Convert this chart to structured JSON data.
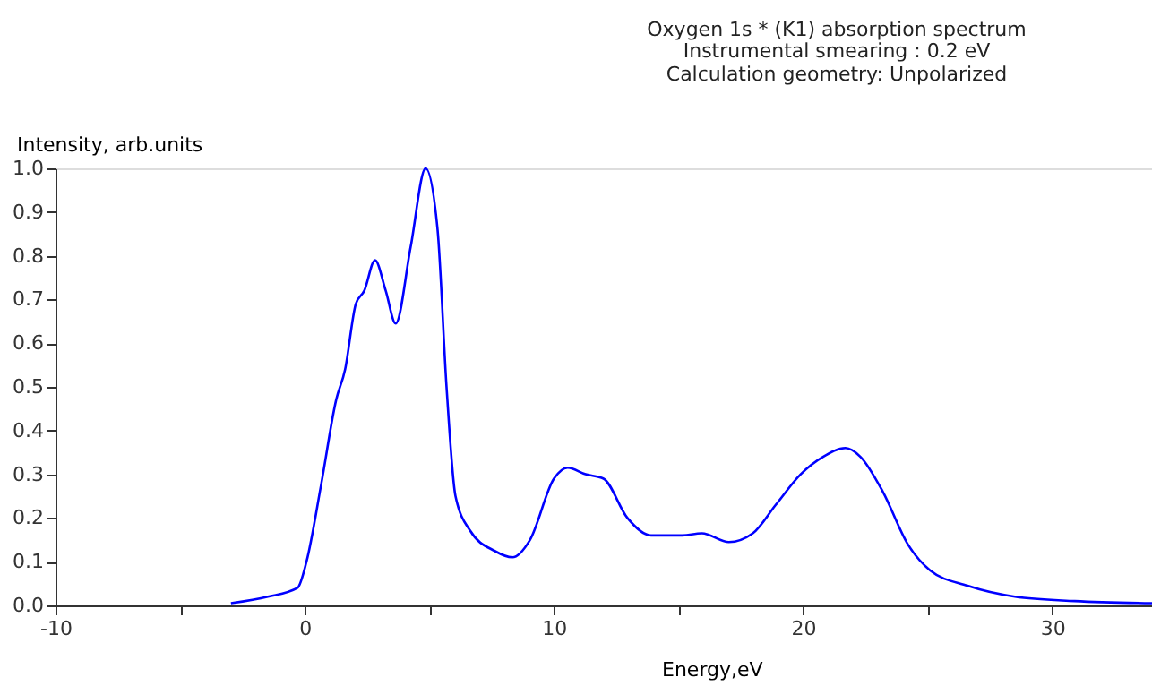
{
  "chart_data": {
    "type": "line",
    "title": "Oxygen 1s * (K1) absorption spectrum",
    "subtitle": "Instrumental smearing : 0.2 eV\nCalculation geometry: Unpolarized",
    "xlabel": "Energy,eV",
    "ylabel": "Intensity, arb.units",
    "series": [
      {
        "color": "#0000ff",
        "x": [
          -2.96,
          -1.48,
          -0.29,
          0.07,
          0.67,
          1.26,
          1.62,
          2.05,
          2.39,
          2.82,
          3.25,
          3.65,
          4.25,
          4.85,
          5.33,
          5.69,
          6.05,
          6.65,
          7.61,
          8.33,
          9.04,
          10.0,
          10.55,
          11.27,
          11.99,
          12.95,
          13.9,
          15.1,
          15.94,
          17.02,
          17.98,
          18.9,
          19.9,
          20.8,
          21.7,
          22.3,
          23.2,
          24.2,
          25.1,
          26.6,
          28.5,
          30.9,
          34.0
        ],
        "values": [
          0.005,
          0.02,
          0.04,
          0.1,
          0.28,
          0.47,
          0.54,
          0.69,
          0.72,
          0.79,
          0.72,
          0.645,
          0.82,
          1.0,
          0.86,
          0.5,
          0.25,
          0.17,
          0.125,
          0.11,
          0.15,
          0.29,
          0.315,
          0.3,
          0.29,
          0.2,
          0.16,
          0.16,
          0.165,
          0.145,
          0.165,
          0.23,
          0.3,
          0.34,
          0.36,
          0.34,
          0.26,
          0.14,
          0.08,
          0.045,
          0.02,
          0.01,
          0.005
        ]
      }
    ],
    "xlim": [
      -10,
      34
    ],
    "xticks": [
      -10,
      {
        "value": -5,
        "label": null
      },
      0,
      {
        "value": 5,
        "label": null
      },
      10,
      {
        "value": 15,
        "label": null
      },
      20,
      {
        "value": 25,
        "label": null
      },
      30
    ],
    "ylim": [
      0,
      1
    ],
    "yticks": [
      {
        "value": 0,
        "label": "0.0"
      },
      {
        "value": 0.1,
        "label": "0.1"
      },
      {
        "value": 0.2,
        "label": "0.2"
      },
      {
        "value": 0.3,
        "label": "0.3"
      },
      {
        "value": 0.4,
        "label": "0.4"
      },
      {
        "value": 0.5,
        "label": "0.5"
      },
      {
        "value": 0.6,
        "label": "0.6"
      },
      {
        "value": 0.7,
        "label": "0.7"
      },
      {
        "value": 0.8,
        "label": "0.8"
      },
      {
        "value": 0.9,
        "label": "0.9"
      },
      {
        "value": 1,
        "label": "1.0"
      }
    ],
    "grid": false,
    "marker": "none",
    "line_style": "solid"
  }
}
